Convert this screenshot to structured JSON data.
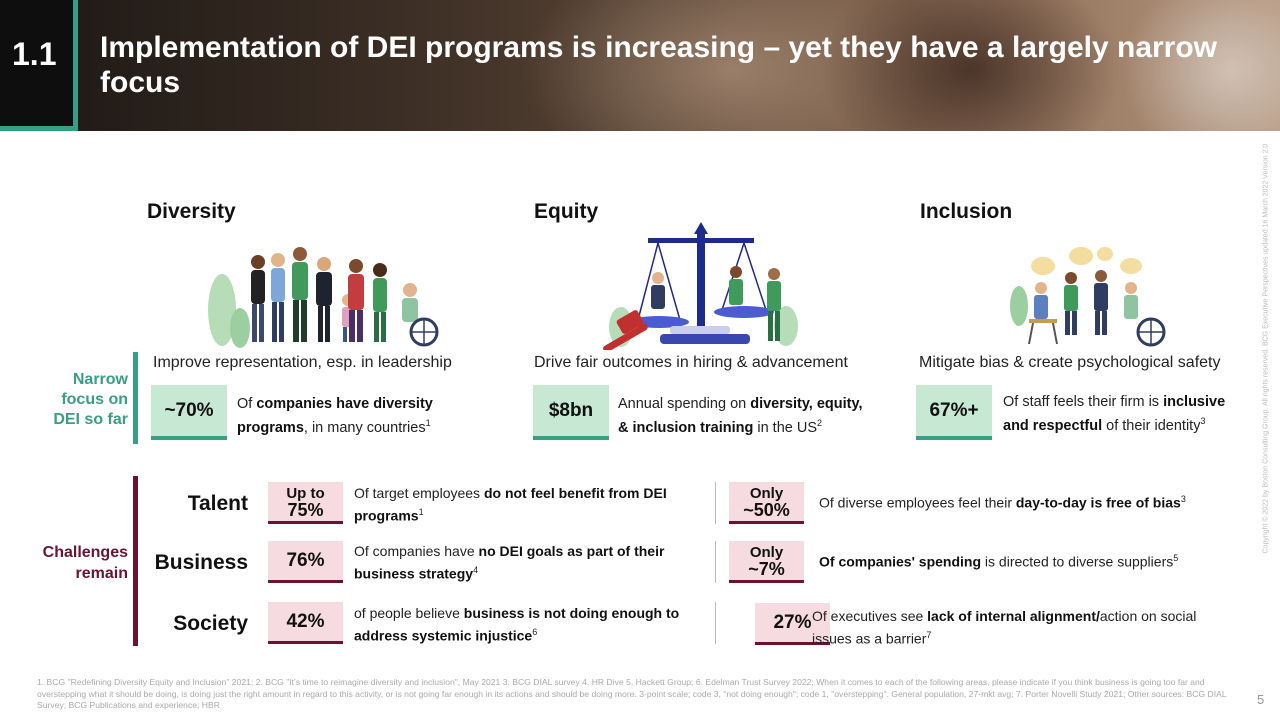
{
  "header": {
    "section_number": "1.1",
    "title": "Implementation of DEI programs is increasing – yet they have a largely narrow focus"
  },
  "columns": [
    {
      "heading": "Diversity",
      "subtitle": "Improve representation, esp. in leadership"
    },
    {
      "heading": "Equity",
      "subtitle": "Drive fair outcomes in hiring & advancement"
    },
    {
      "heading": "Inclusion",
      "subtitle": "Mitigate bias & create psychological safety"
    }
  ],
  "narrow_focus": {
    "label_line1": "Narrow",
    "label_line2": "focus on",
    "label_line3": "DEI so far",
    "stats": [
      {
        "value": "~70%",
        "t1": "Of ",
        "b1": "companies have diversity",
        "b2": "programs",
        "t2": ", in many countries",
        "sup": "1"
      },
      {
        "value": "$8bn",
        "t1": "Annual spending on ",
        "b1": "diversity, equity,",
        "b2": "& inclusion training",
        "t2": " in the US",
        "sup": "2"
      },
      {
        "value": "67%+",
        "t1": "Of staff feels their firm is ",
        "b1": "inclusive",
        "b2": "and respectful",
        "t2": " of their identity",
        "sup": "3"
      }
    ]
  },
  "challenges": {
    "label_line1": "Challenges",
    "label_line2": "remain",
    "rows": [
      {
        "label": "Talent",
        "left": {
          "value_small": "Up to",
          "value_big": "75%",
          "t1": "Of target employees ",
          "b1": "do not feel benefit from DEI programs",
          "sup": "1"
        },
        "right": {
          "value_small": "Only",
          "value_big": "~50%",
          "t1": "Of diverse employees feel their ",
          "b1": "day-to-day is free of bias",
          "sup": "3"
        }
      },
      {
        "label": "Business",
        "left": {
          "value": "76%",
          "t1": "Of companies have ",
          "b1": "no DEI goals as part of their business strategy",
          "sup": "4"
        },
        "right": {
          "value_small": "Only",
          "value_big": "~7%",
          "b1": "Of companies' spending",
          "t1": " is directed to diverse suppliers",
          "sup": "5"
        }
      },
      {
        "label": "Society",
        "left": {
          "value": "42%",
          "t1": "of people believe ",
          "b1": "business is not doing enough to address systemic injustice",
          "sup": "6"
        },
        "right": {
          "value": "27%",
          "t1": "Of executives see ",
          "b1": "lack of internal alignment/",
          "t2": "action on social issues as a barrier",
          "sup": "7"
        }
      }
    ]
  },
  "footnote": "1. BCG \"Redefining Diversity Equity and Inclusion\" 2021; 2. BCG \"It's time to reimagine diversity and inclusion\", May 2021 3. BCG DIAL survey 4. HR Dive 5. Hackett Group; 6. Edelman Trust Survey 2022; When it comes to each of the following areas, please indicate if you think business is going too far and overstepping what it should be doing, is doing just the right amount in regard to this activity, or is not going far enough in its actions and should be doing more. 3-point scale; code 3, \"not doing enough\"; code 1, \"overstepping\". General population, 27-mkt avg; 7. Porter Novelli Study 2021; Other sources: BCG DIAL Survey; BCG Publications and experience; HBR",
  "page_number": "5",
  "side_copyright": "Copyright © 2022 by Boston Consulting Group. All rights reserved. BCG Executive Perspectives updated 16 March 2022 Version 2.0"
}
